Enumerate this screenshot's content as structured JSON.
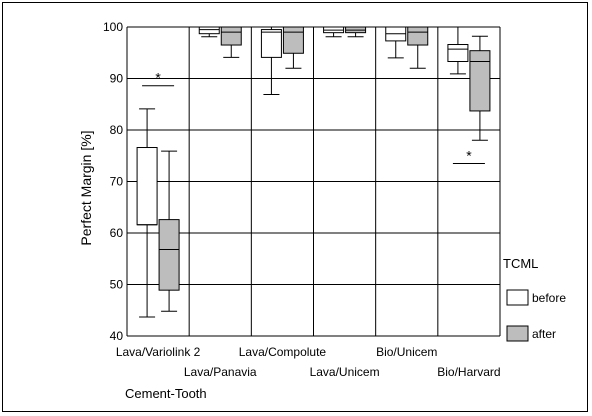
{
  "chart_data": {
    "type": "boxplot",
    "ylabel": "Perfect Margin [%]",
    "xlabel": "Cement-Tooth",
    "ylim": [
      40,
      100
    ],
    "yticks": [
      40,
      50,
      60,
      70,
      80,
      90,
      100
    ],
    "grid": true,
    "legend": {
      "title": "TCML",
      "position": "right",
      "entries": [
        "before",
        "after"
      ]
    },
    "categories": [
      "Lava/Variolink 2",
      "Lava/Panavia",
      "Lava/Compolute",
      "Lava/Unicem",
      "Bio/Unicem",
      "Bio/Harvard"
    ],
    "series": [
      {
        "name": "before",
        "color": "#ffffff",
        "boxes": [
          {
            "min": 43.7,
            "q1": 61.6,
            "median": 61.6,
            "q3": 76.6,
            "max": 84.1
          },
          {
            "min": 98.1,
            "q1": 98.7,
            "median": 99.5,
            "q3": 100,
            "max": 100
          },
          {
            "min": 86.9,
            "q1": 94.1,
            "median": 99.0,
            "q3": 99.5,
            "max": 100
          },
          {
            "min": 98.1,
            "q1": 98.9,
            "median": 99.4,
            "q3": 100,
            "max": 100
          },
          {
            "min": 94.0,
            "q1": 97.3,
            "median": 98.7,
            "q3": 100,
            "max": 100
          },
          {
            "min": 90.9,
            "q1": 93.3,
            "median": 95.7,
            "q3": 96.6,
            "max": 100
          }
        ]
      },
      {
        "name": "after",
        "color": "#bdbdbd",
        "boxes": [
          {
            "min": 44.8,
            "q1": 48.9,
            "median": 56.8,
            "q3": 62.6,
            "max": 75.9
          },
          {
            "min": 94.1,
            "q1": 96.5,
            "median": 99.0,
            "q3": 100,
            "max": 100
          },
          {
            "min": 92.0,
            "q1": 94.9,
            "median": 99.0,
            "q3": 100,
            "max": 100
          },
          {
            "min": 98.1,
            "q1": 98.9,
            "median": 99.4,
            "q3": 100,
            "max": 100
          },
          {
            "min": 92.0,
            "q1": 96.5,
            "median": 99.0,
            "q3": 100,
            "max": 100
          },
          {
            "min": 78.0,
            "q1": 83.7,
            "median": 93.3,
            "q3": 95.4,
            "max": 98.2
          }
        ]
      }
    ],
    "annotations": [
      {
        "text": "*",
        "category": "Lava/Variolink 2",
        "y": 88.6
      },
      {
        "text": "*",
        "category": "Bio/Harvard",
        "y": 73.5
      }
    ]
  }
}
